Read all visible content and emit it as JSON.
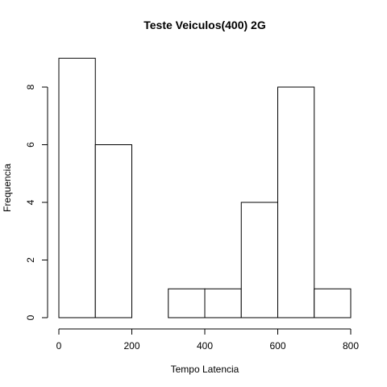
{
  "chart_data": {
    "type": "bar",
    "title": "Teste Veiculos(400) 2G",
    "xlabel": "Tempo Latencia",
    "ylabel": "Frequencia",
    "bins": [
      {
        "x0": 0,
        "x1": 100,
        "count": 9
      },
      {
        "x0": 100,
        "x1": 200,
        "count": 6
      },
      {
        "x0": 200,
        "x1": 300,
        "count": 0
      },
      {
        "x0": 300,
        "x1": 400,
        "count": 1
      },
      {
        "x0": 400,
        "x1": 500,
        "count": 1
      },
      {
        "x0": 500,
        "x1": 600,
        "count": 4
      },
      {
        "x0": 600,
        "x1": 700,
        "count": 8
      },
      {
        "x0": 700,
        "x1": 800,
        "count": 1
      }
    ],
    "xlim": [
      0,
      800
    ],
    "ylim": [
      0,
      9
    ],
    "xticks": [
      "0",
      "200",
      "400",
      "600",
      "800"
    ],
    "yticks": [
      "0",
      "2",
      "4",
      "6",
      "8"
    ],
    "grid": false,
    "legend": "none"
  }
}
